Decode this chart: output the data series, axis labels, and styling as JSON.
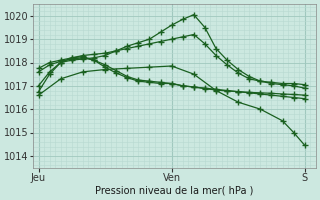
{
  "xlabel": "Pression niveau de la mer( hPa )",
  "xtick_labels": [
    "Jeu",
    "Ven",
    "S"
  ],
  "xtick_positions": [
    0,
    24,
    48
  ],
  "ylim": [
    1013.5,
    1020.5
  ],
  "yticks": [
    1014,
    1015,
    1016,
    1017,
    1018,
    1019,
    1020
  ],
  "bg_color": "#cce8e0",
  "grid_color_major": "#a0c8be",
  "grid_color_minor": "#b8d8d0",
  "line_color": "#1a6020",
  "xlim": [
    -1,
    50
  ],
  "lines": [
    [
      0,
      1017.0,
      2,
      1017.6,
      4,
      1018.0,
      6,
      1018.1,
      8,
      1018.15,
      10,
      1018.2,
      12,
      1018.3,
      14,
      1018.5,
      16,
      1018.7,
      18,
      1018.85,
      20,
      1019.0,
      22,
      1019.3,
      24,
      1019.6,
      26,
      1019.85,
      28,
      1020.05,
      30,
      1019.5,
      32,
      1018.6,
      34,
      1018.1,
      36,
      1017.7,
      38,
      1017.4,
      40,
      1017.2,
      42,
      1017.1,
      44,
      1017.05,
      46,
      1017.0,
      48,
      1016.9
    ],
    [
      0,
      1017.75,
      2,
      1018.0,
      4,
      1018.1,
      6,
      1018.2,
      8,
      1018.25,
      10,
      1018.1,
      12,
      1017.8,
      14,
      1017.55,
      16,
      1017.35,
      18,
      1017.2,
      20,
      1017.15,
      22,
      1017.1,
      24,
      1017.1,
      26,
      1017.0,
      28,
      1016.95,
      30,
      1016.9,
      32,
      1016.85,
      34,
      1016.8,
      36,
      1016.75,
      38,
      1016.7,
      40,
      1016.65,
      42,
      1016.6,
      44,
      1016.55,
      46,
      1016.5,
      48,
      1016.45
    ],
    [
      0,
      1017.6,
      2,
      1017.9,
      4,
      1018.05,
      6,
      1018.15,
      8,
      1018.2,
      10,
      1018.1,
      12,
      1017.9,
      14,
      1017.65,
      16,
      1017.4,
      18,
      1017.25,
      20,
      1017.2,
      22,
      1017.15,
      24,
      1017.1,
      26,
      1017.0,
      28,
      1016.95,
      30,
      1016.88,
      32,
      1016.82,
      34,
      1016.78,
      36,
      1016.75,
      38,
      1016.72,
      40,
      1016.7,
      42,
      1016.68,
      44,
      1016.65,
      46,
      1016.63,
      48,
      1016.6
    ],
    [
      0,
      1016.75,
      2,
      1017.5,
      4,
      1018.0,
      6,
      1018.2,
      8,
      1018.3,
      10,
      1018.35,
      12,
      1018.4,
      14,
      1018.5,
      16,
      1018.6,
      18,
      1018.7,
      20,
      1018.8,
      22,
      1018.9,
      24,
      1019.0,
      26,
      1019.1,
      28,
      1019.2,
      30,
      1018.8,
      32,
      1018.3,
      34,
      1017.9,
      36,
      1017.55,
      38,
      1017.3,
      40,
      1017.2,
      42,
      1017.15,
      44,
      1017.1,
      46,
      1017.1,
      48,
      1017.05
    ],
    [
      0,
      1016.6,
      4,
      1017.3,
      8,
      1017.6,
      12,
      1017.7,
      16,
      1017.75,
      20,
      1017.8,
      24,
      1017.85,
      28,
      1017.5,
      32,
      1016.8,
      36,
      1016.3,
      40,
      1016.0,
      44,
      1015.5,
      46,
      1015.0,
      48,
      1014.45
    ]
  ]
}
